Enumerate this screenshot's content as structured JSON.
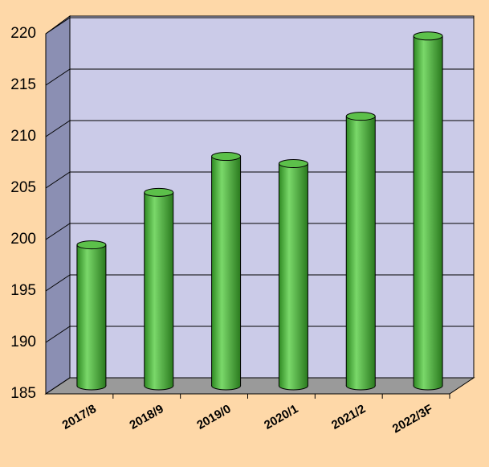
{
  "chart_data": {
    "type": "bar3d",
    "categories": [
      "2017/8",
      "2018/9",
      "2019/0",
      "2020/1",
      "2021/2",
      "2022/3F"
    ],
    "values": [
      198.7,
      203.8,
      207.3,
      206.6,
      211.2,
      219
    ],
    "color": "#5cc04a",
    "ylim": [
      185,
      220
    ],
    "yticks": [
      185,
      190,
      195,
      200,
      205,
      210,
      215,
      220
    ],
    "grid": true
  }
}
